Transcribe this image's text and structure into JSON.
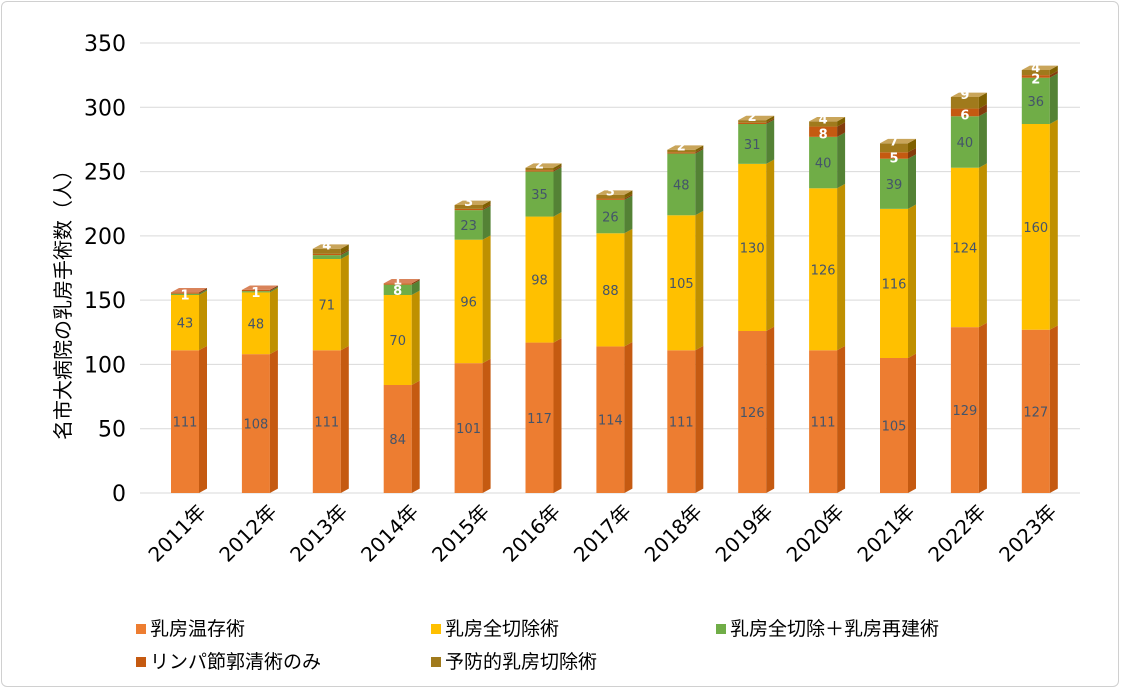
{
  "chart_data": {
    "type": "bar",
    "stacked": true,
    "ylabel": "名市大病院の乳房手術数（人）",
    "ylim": [
      0,
      350
    ],
    "yticks": [
      0,
      50,
      100,
      150,
      200,
      250,
      300,
      350
    ],
    "grid": true,
    "legend_position": "bottom",
    "categories": [
      "2011年",
      "2012年",
      "2013年",
      "2014年",
      "2015年",
      "2016年",
      "2017年",
      "2018年",
      "2019年",
      "2020年",
      "2021年",
      "2022年",
      "2023年"
    ],
    "series": [
      {
        "name": "乳房温存術",
        "color": "#ed7d31",
        "side": "#c55a11",
        "top": "#f4b183",
        "labelColor": "dark",
        "values": [
          111,
          108,
          111,
          84,
          101,
          117,
          114,
          111,
          126,
          111,
          105,
          129,
          127
        ]
      },
      {
        "name": "乳房全切除術",
        "color": "#ffc000",
        "side": "#bf9000",
        "top": "#ffe699",
        "labelColor": "dark",
        "values": [
          43,
          48,
          71,
          70,
          96,
          98,
          88,
          105,
          130,
          126,
          116,
          124,
          160
        ]
      },
      {
        "name": "乳房全切除＋乳房再建術",
        "color": "#70ad47",
        "side": "#548235",
        "top": "#a9d18e",
        "labelColor": "dark",
        "values": [
          1,
          1,
          3,
          8,
          23,
          35,
          26,
          48,
          31,
          40,
          39,
          40,
          36
        ]
      },
      {
        "name": "リンパ節郭清術のみ",
        "color": "#c55a11",
        "side": "#843c0c",
        "top": "#d9835a",
        "labelColor": "light",
        "values": [
          1,
          1,
          1,
          1,
          1,
          1,
          1,
          1,
          1,
          8,
          5,
          6,
          2
        ]
      },
      {
        "name": "予防的乳房切除術",
        "color": "#a07a1c",
        "side": "#7f6000",
        "top": "#c9a55a",
        "labelColor": "light",
        "values": [
          0,
          0,
          4,
          0,
          3,
          2,
          3,
          2,
          2,
          4,
          7,
          9,
          4
        ]
      }
    ],
    "data_labels": [
      [
        {
          "s": 0,
          "t": "111"
        },
        {
          "s": 1,
          "t": "43"
        },
        {
          "s": 2,
          "t": "1"
        }
      ],
      [
        {
          "s": 0,
          "t": "108"
        },
        {
          "s": 1,
          "t": "48"
        },
        {
          "s": 2,
          "t": "1"
        }
      ],
      [
        {
          "s": 0,
          "t": "111"
        },
        {
          "s": 1,
          "t": "71"
        },
        {
          "s": 4,
          "t": "4"
        }
      ],
      [
        {
          "s": 0,
          "t": "84"
        },
        {
          "s": 1,
          "t": "70"
        },
        {
          "s": 2,
          "t": "8"
        },
        {
          "s": 3,
          "t": "1"
        }
      ],
      [
        {
          "s": 0,
          "t": "101"
        },
        {
          "s": 1,
          "t": "96"
        },
        {
          "s": 2,
          "t": "23"
        },
        {
          "s": 4,
          "t": "3"
        }
      ],
      [
        {
          "s": 0,
          "t": "117"
        },
        {
          "s": 1,
          "t": "98"
        },
        {
          "s": 2,
          "t": "35"
        },
        {
          "s": 4,
          "t": "2"
        }
      ],
      [
        {
          "s": 0,
          "t": "114"
        },
        {
          "s": 1,
          "t": "88"
        },
        {
          "s": 2,
          "t": "26"
        },
        {
          "s": 4,
          "t": "3"
        }
      ],
      [
        {
          "s": 0,
          "t": "111"
        },
        {
          "s": 1,
          "t": "105"
        },
        {
          "s": 2,
          "t": "48"
        },
        {
          "s": 4,
          "t": "2"
        }
      ],
      [
        {
          "s": 0,
          "t": "126"
        },
        {
          "s": 1,
          "t": "130"
        },
        {
          "s": 2,
          "t": "31"
        },
        {
          "s": 4,
          "t": "2"
        }
      ],
      [
        {
          "s": 0,
          "t": "111"
        },
        {
          "s": 1,
          "t": "126"
        },
        {
          "s": 2,
          "t": "40"
        },
        {
          "s": 3,
          "t": "8"
        },
        {
          "s": 4,
          "t": "4"
        }
      ],
      [
        {
          "s": 0,
          "t": "105"
        },
        {
          "s": 1,
          "t": "116"
        },
        {
          "s": 2,
          "t": "39"
        },
        {
          "s": 3,
          "t": "5"
        },
        {
          "s": 4,
          "t": "7"
        }
      ],
      [
        {
          "s": 0,
          "t": "129"
        },
        {
          "s": 1,
          "t": "124"
        },
        {
          "s": 2,
          "t": "40"
        },
        {
          "s": 3,
          "t": "6"
        },
        {
          "s": 4,
          "t": "9"
        }
      ],
      [
        {
          "s": 0,
          "t": "127"
        },
        {
          "s": 1,
          "t": "160"
        },
        {
          "s": 2,
          "t": "36"
        },
        {
          "s": 3,
          "t": "2"
        },
        {
          "s": 4,
          "t": "4"
        }
      ]
    ]
  }
}
